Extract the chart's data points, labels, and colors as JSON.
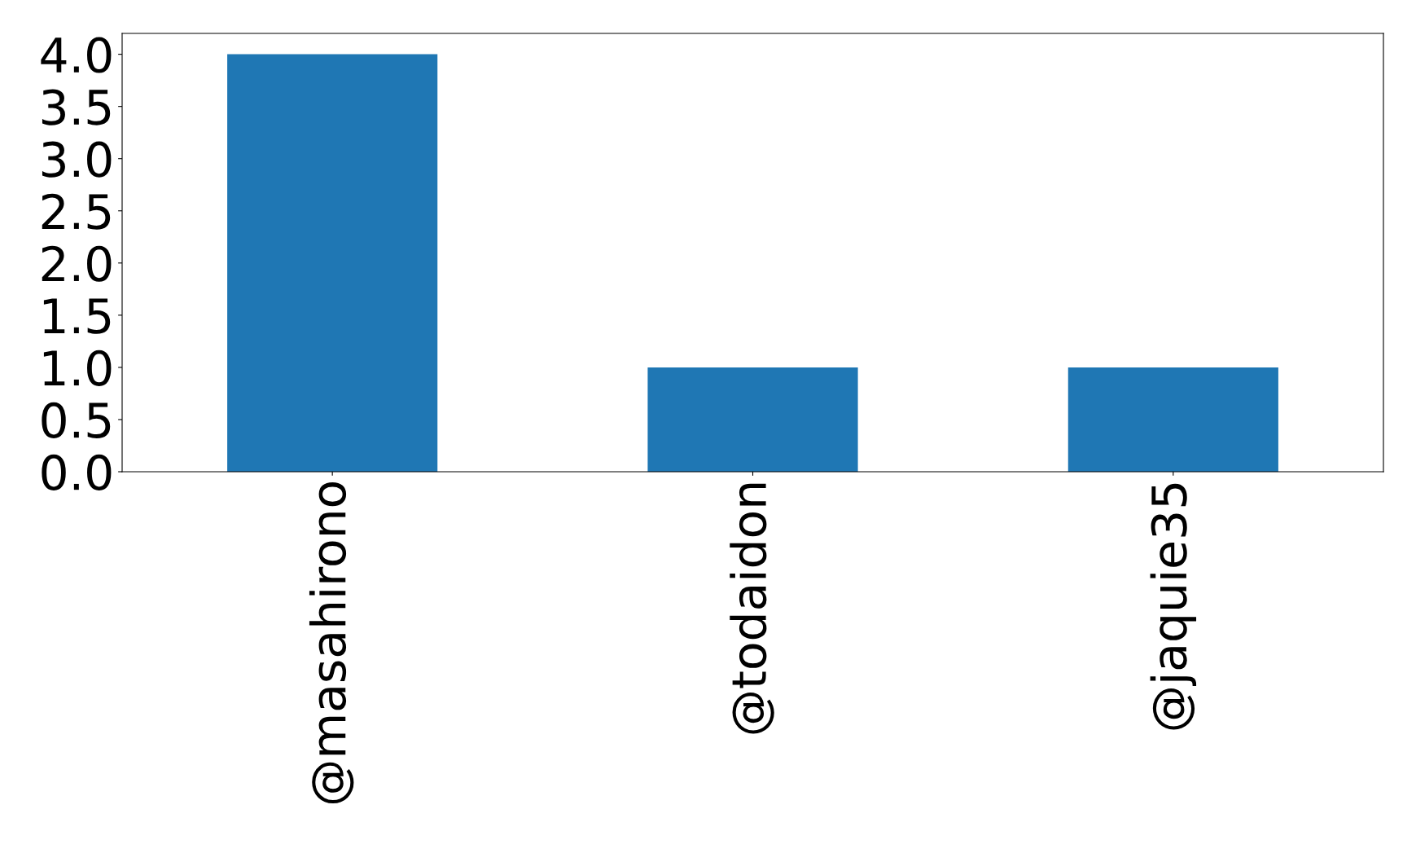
{
  "chart_data": {
    "type": "bar",
    "categories": [
      "@masahirono",
      "@todaidon",
      "@jaquie35"
    ],
    "values": [
      4,
      1,
      1
    ],
    "color": "#1f77b4",
    "ylim": [
      0,
      4.2
    ],
    "yticks": [
      {
        "value": 0,
        "label": "0.0"
      },
      {
        "value": 0.5,
        "label": "0.5"
      },
      {
        "value": 1,
        "label": "1.0"
      },
      {
        "value": 1.5,
        "label": "1.5"
      },
      {
        "value": 2,
        "label": "2.0"
      },
      {
        "value": 2.5,
        "label": "2.5"
      },
      {
        "value": 3,
        "label": "3.0"
      },
      {
        "value": 3.5,
        "label": "3.5"
      },
      {
        "value": 4,
        "label": "4.0"
      }
    ],
    "grid": false,
    "legend": false
  }
}
